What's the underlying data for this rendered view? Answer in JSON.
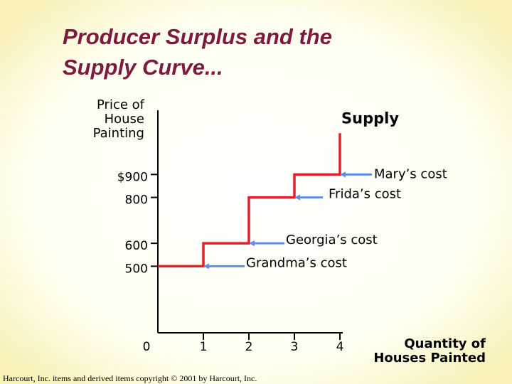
{
  "chart_data": {
    "type": "line",
    "title": [
      "Producer Surplus and the",
      "Supply Curve..."
    ],
    "y_label": [
      "Price of",
      "House",
      "Painting"
    ],
    "x_label": [
      "Quantity of",
      "Houses Painted"
    ],
    "xlim": [
      0,
      4
    ],
    "ylim": [
      210,
      1180
    ],
    "xticks": [
      0,
      1,
      2,
      3,
      4
    ],
    "yticks": [
      500,
      600,
      800,
      {
        "value": 900,
        "label": "$900"
      }
    ],
    "series": [
      {
        "name": "Supply",
        "color": "#e0202a",
        "x": [
          0,
          1,
          1,
          2,
          2,
          3,
          3,
          4,
          4
        ],
        "values": [
          500,
          500,
          600,
          600,
          800,
          800,
          900,
          900,
          1080
        ]
      }
    ],
    "annotations": [
      {
        "text": "Mary’s cost",
        "x": 4,
        "y": 900
      },
      {
        "text": "Frida’s cost",
        "x": 3,
        "y": 800
      },
      {
        "text": "Georgia’s cost",
        "x": 2,
        "y": 600
      },
      {
        "text": "Grandma’s cost",
        "x": 1,
        "y": 500
      }
    ],
    "arrow_color": "#5b8ee6",
    "footer": "Harcourt, Inc. items and derived items copyright © 2001 by Harcourt, Inc."
  }
}
